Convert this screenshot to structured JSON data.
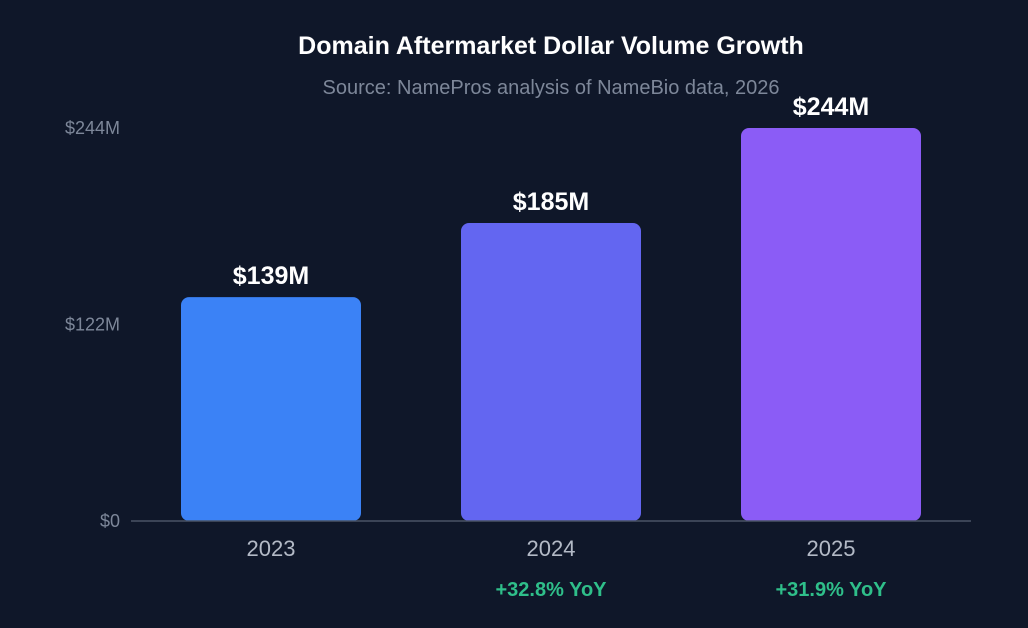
{
  "chart_data": {
    "type": "bar",
    "title": "Domain Aftermarket Dollar Volume Growth",
    "subtitle": "Source: NamePros analysis of NameBio data, 2026",
    "categories": [
      "2023",
      "2024",
      "2025"
    ],
    "values": [
      139,
      185,
      244
    ],
    "value_labels": [
      "$139M",
      "$185M",
      "$244M"
    ],
    "yoy_labels": [
      "",
      "+32.8% YoY",
      "+31.9% YoY"
    ],
    "bar_colors": [
      "#3b82f6",
      "#6366f1",
      "#8b5cf6"
    ],
    "yoy_color": "#2fbf8a",
    "ylim": [
      0,
      244
    ],
    "yticks": [
      0,
      122,
      244
    ],
    "ytick_labels": [
      "$0",
      "$122M",
      "$244M"
    ],
    "xlabel": "",
    "ylabel": "",
    "grid": false,
    "legend": "none"
  }
}
